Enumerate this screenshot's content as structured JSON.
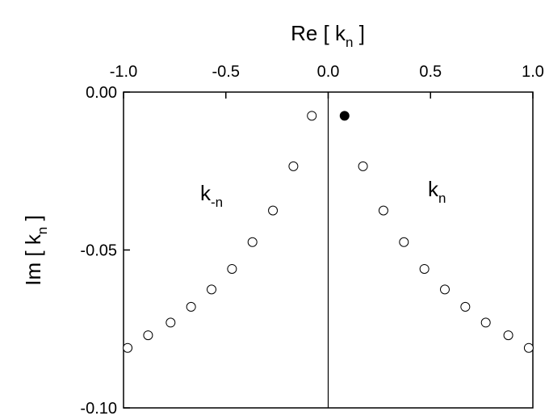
{
  "chart_data": {
    "type": "scatter",
    "xlabel": [
      "Re [ k",
      "n",
      " ]"
    ],
    "ylabel": [
      "Im [ k",
      "n",
      " ]"
    ],
    "annotations": [
      [
        "k",
        "-n"
      ],
      [
        "k",
        "n"
      ]
    ],
    "xlim": [
      -1.0,
      1.0
    ],
    "ylim": [
      -0.1,
      0.0
    ],
    "xticks": [
      {
        "value": -1.0,
        "label": "-1.0"
      },
      {
        "value": -0.5,
        "label": "-0.5"
      },
      {
        "value": 0.0,
        "label": "0.0"
      },
      {
        "value": 0.5,
        "label": "0.5"
      },
      {
        "value": 1.0,
        "label": "1.0"
      }
    ],
    "yticks": [
      {
        "value": 0.0,
        "label": "0.00"
      },
      {
        "value": -0.05,
        "label": "-0.05"
      },
      {
        "value": -0.1,
        "label": "-0.10"
      }
    ],
    "zero_line": true,
    "series": [
      {
        "color": "#000000",
        "marker": "open",
        "x": [
          -0.08,
          -0.17,
          -0.27,
          -0.37,
          -0.47,
          -0.57,
          -0.67,
          -0.77,
          -0.88,
          -0.98
        ],
        "values": [
          -0.0075,
          -0.0235,
          -0.0375,
          -0.0475,
          -0.056,
          -0.0625,
          -0.068,
          -0.073,
          -0.077,
          -0.081
        ]
      },
      {
        "color": "#000000",
        "marker": "filled",
        "x": [
          0.08
        ],
        "values": [
          -0.0075
        ]
      },
      {
        "color": "#000000",
        "marker": "open",
        "x": [
          0.17,
          0.27,
          0.37,
          0.47,
          0.57,
          0.67,
          0.77,
          0.88,
          0.98
        ],
        "values": [
          -0.0235,
          -0.0375,
          -0.0475,
          -0.056,
          -0.0625,
          -0.068,
          -0.073,
          -0.077,
          -0.081
        ]
      }
    ]
  }
}
